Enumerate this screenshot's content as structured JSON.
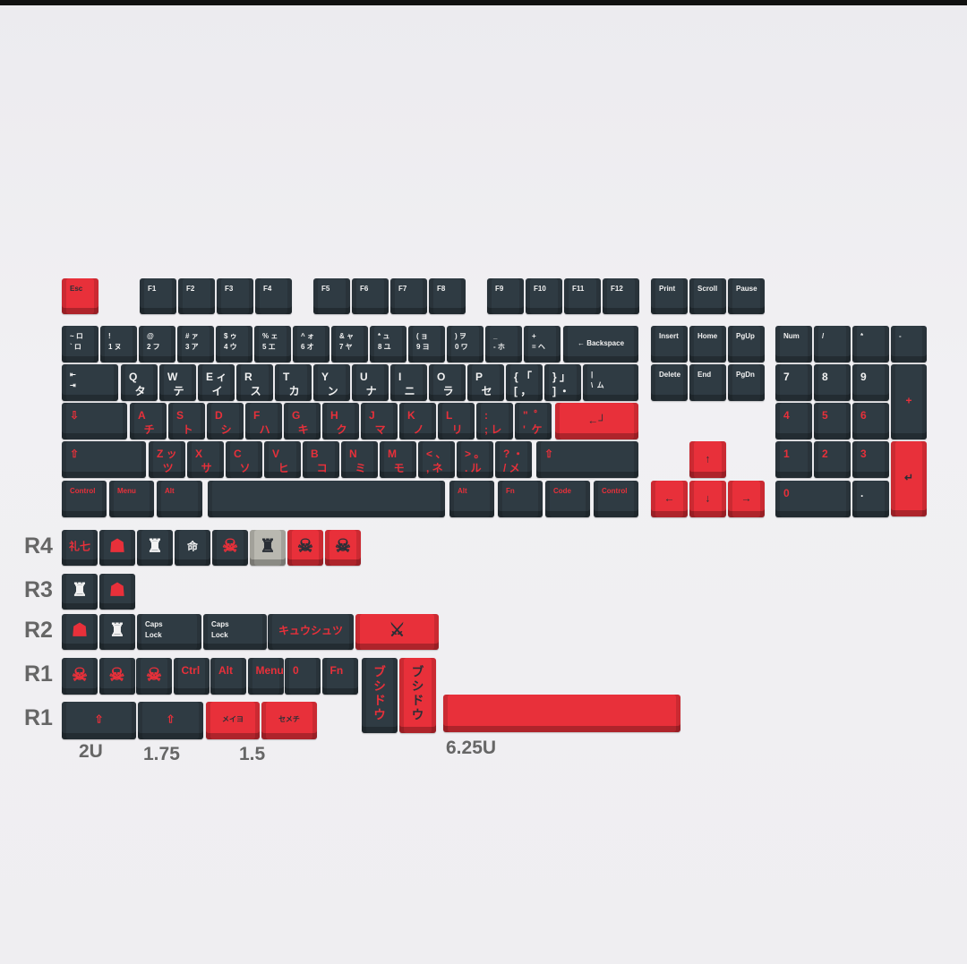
{
  "keyboard": {
    "function_row": [
      "Esc",
      "F1",
      "F2",
      "F3",
      "F4",
      "F5",
      "F6",
      "F7",
      "F8",
      "F9",
      "F10",
      "F11",
      "F12",
      "Print",
      "Scroll",
      "Pause"
    ],
    "number_row": [
      "~ ロ\n` ロ",
      "!\n1 ヌ",
      "@\n2 フ",
      "# ァ\n3 ア",
      "$ ゥ\n4 ウ",
      "% ェ\n5 エ",
      "^ ォ\n6 オ",
      "& ャ\n7 ヤ",
      "* ュ\n8 ユ",
      "( ョ\n9 ヨ",
      ") ヲ\n0 ワ",
      "_\n- ホ",
      "+\n= ヘ",
      "← Backspace"
    ],
    "nav_top": [
      "Insert",
      "Home",
      "PgUp"
    ],
    "nav_bottom": [
      "Delete",
      "End",
      "PgDn"
    ],
    "qwerty_row": [
      "⇤\n⇥",
      "Q\n  タ",
      "W\n  テ",
      "E ィ\n  イ",
      "R\n  ス",
      "T\n  カ",
      "Y\n  ン",
      "U\n  ナ",
      "I\n  ニ",
      "O\n  ラ",
      "P\n  セ",
      "{ 「\n[ ，",
      "} 」\n] ・",
      "|\n\\  ム"
    ],
    "home_row": [
      "⇩",
      "A\n  チ",
      "S\n  ト",
      "D\n  シ",
      "F\n  ハ",
      "G\n  キ",
      "H\n  ク",
      "J\n  マ",
      "K\n  ノ",
      "L\n  リ",
      ":\n; レ",
      "\"  ゜\n'  ケ",
      "←┘"
    ],
    "shift_row": [
      "⇧",
      "Z ッ\n  ツ",
      "X\n  サ",
      "C\n  ソ",
      "V\n  ヒ",
      "B\n  コ",
      "N\n  ミ",
      "M\n  モ",
      "< 、\n, ネ",
      "> 。\n. ル",
      "? ・\n/ メ",
      "⇧"
    ],
    "bottom_row": [
      "Control",
      "Menu",
      "Alt",
      "",
      "Alt",
      "Fn",
      "Code",
      "Control"
    ],
    "arrows": [
      "↑",
      "←",
      "↓",
      "→"
    ],
    "numpad": [
      "Num",
      "/",
      "*",
      "-",
      "7",
      "8",
      "9",
      "+",
      "4",
      "5",
      "6",
      "1",
      "2",
      "3",
      "↵",
      "0",
      "."
    ]
  },
  "extras": {
    "row_labels": [
      "R4",
      "R3",
      "R2",
      "R1",
      "R1"
    ],
    "r4": [
      "礼七",
      "oni-helmet-icon",
      "samurai-helmet-icon",
      "命",
      "oni-mask-icon",
      "samurai-helmet-icon",
      "oni-mask-icon",
      "oni-mask-icon"
    ],
    "r3": [
      "samurai-helmet-icon",
      "oni-helmet-icon"
    ],
    "r2": [
      "oni-helmet-icon",
      "samurai-helmet-icon",
      "Caps\nLock",
      "Caps\nLock",
      "キュウシュツ",
      "katana-icon"
    ],
    "r1_top": [
      "oni-crossbones-icon",
      "oni-mask-icon",
      "oni-mask-icon",
      "Ctrl",
      "Alt",
      "Menu",
      "0",
      "Fn"
    ],
    "vertical_keys": [
      "ブシドウ",
      "ブシドウ"
    ],
    "r1_bottom": [
      "⇧",
      "⇧",
      "メイヨ",
      "セメチ",
      ""
    ],
    "size_labels": [
      "2U",
      "1.75",
      "1.5",
      "6.25U"
    ]
  },
  "colors": {
    "keycap_dark": "#2f3b43",
    "keycap_red": "#e8303a",
    "keycap_grey": "#b9b8b0",
    "background": "#efeef1"
  }
}
